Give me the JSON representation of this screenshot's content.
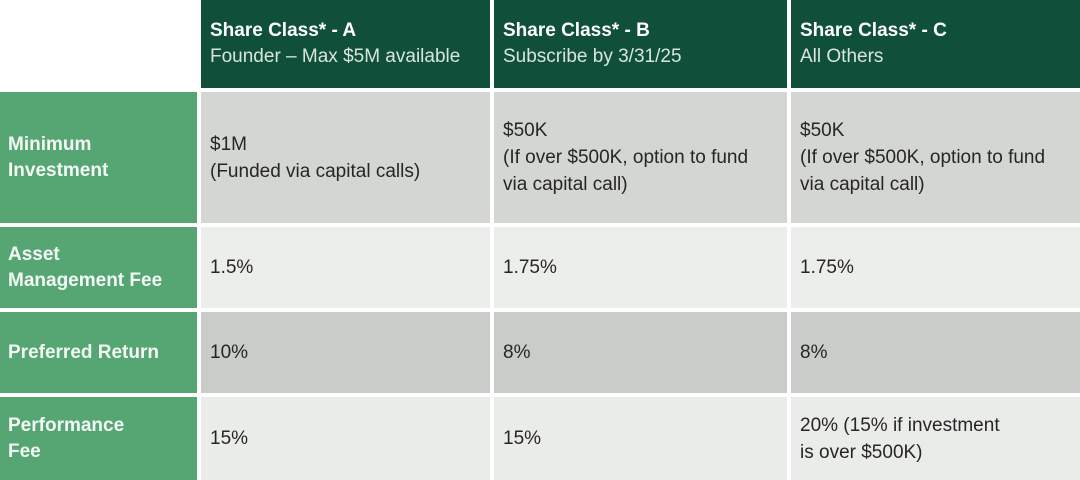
{
  "chart_data": {
    "type": "table",
    "columns": [
      {
        "title": "Share Class* - A",
        "subtitle": "Founder – Max $5M available"
      },
      {
        "title": "Share Class* - B",
        "subtitle": "Subscribe by 3/31/25"
      },
      {
        "title": "Share Class* - C",
        "subtitle": "All Others"
      }
    ],
    "rows": [
      {
        "label": "Minimum\nInvestment",
        "cells": [
          "$1M\n(Funded via capital calls)",
          "$50K\n(If over $500K, option to fund\nvia capital call)",
          "$50K\n(If over $500K, option to fund\nvia capital call)"
        ]
      },
      {
        "label": "Asset\nManagement Fee",
        "cells": [
          "1.5%",
          "1.75%",
          "1.75%"
        ]
      },
      {
        "label": "Preferred Return",
        "cells": [
          "10%",
          "8%",
          "8%"
        ]
      },
      {
        "label": "Performance\nFee",
        "cells": [
          "15%",
          "15%",
          "20% (15% if investment\nis over $500K)"
        ]
      }
    ]
  },
  "colors": {
    "header_bg": "#10503A",
    "header_subtitle_color": "#D8E5DC",
    "label_bg": "#55A673",
    "row1_bg": "#D3D6D1",
    "row2_bg": "#ECEEEB",
    "row3_bg": "#C9CCC8",
    "row4_bg": "#EAECE9",
    "cell_text": "#262626"
  }
}
